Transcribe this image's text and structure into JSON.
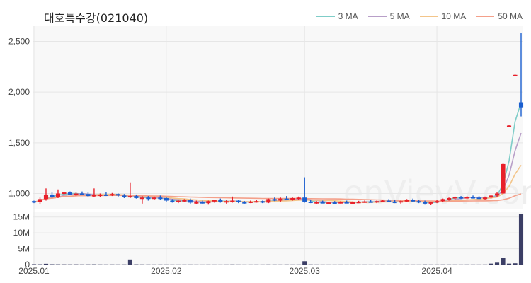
{
  "title": "대호특수강(021040)",
  "watermark": "enVievV.com",
  "legend": [
    {
      "label": "3 MA",
      "color": "#7fcdc8"
    },
    {
      "label": "5 MA",
      "color": "#b89fc8"
    },
    {
      "label": "10 MA",
      "color": "#f3c58a"
    },
    {
      "label": "50 MA",
      "color": "#f4a08a"
    }
  ],
  "colors": {
    "up": "#e8202a",
    "down": "#1b5fcf",
    "volume": "#3c3f66",
    "grid": "#e6e6e6",
    "panel": "#f8f8f8"
  },
  "chart_data": [
    {
      "type": "candlestick",
      "x_ticks": [
        {
          "label": "2025.01",
          "index": 0
        },
        {
          "label": "2025.02",
          "index": 22
        },
        {
          "label": "2025.03",
          "index": 45
        },
        {
          "label": "2025.04",
          "index": 67
        }
      ],
      "y_ticks": [
        1000,
        1500,
        2000,
        2500
      ],
      "ylim": [
        850,
        2650
      ],
      "grid": true,
      "legend_position": "top-right",
      "candles": [
        [
          925,
          930,
          905,
          915
        ],
        [
          915,
          960,
          895,
          945
        ],
        [
          945,
          1050,
          930,
          990
        ],
        [
          990,
          1010,
          955,
          965
        ],
        [
          965,
          1040,
          955,
          1000
        ],
        [
          1000,
          1015,
          990,
          1010
        ],
        [
          1010,
          1020,
          985,
          990
        ],
        [
          990,
          1010,
          975,
          1000
        ],
        [
          1000,
          1020,
          990,
          995
        ],
        [
          995,
          1010,
          965,
          975
        ],
        [
          975,
          1050,
          965,
          985
        ],
        [
          985,
          1000,
          965,
          990
        ],
        [
          990,
          1010,
          975,
          985
        ],
        [
          985,
          1005,
          975,
          995
        ],
        [
          995,
          1000,
          970,
          980
        ],
        [
          980,
          995,
          955,
          965
        ],
        [
          965,
          1110,
          955,
          975
        ],
        [
          975,
          990,
          950,
          955
        ],
        [
          955,
          975,
          900,
          960
        ],
        [
          960,
          975,
          930,
          950
        ],
        [
          950,
          970,
          940,
          960
        ],
        [
          960,
          980,
          940,
          955
        ],
        [
          955,
          965,
          920,
          930
        ],
        [
          930,
          945,
          910,
          920
        ],
        [
          920,
          935,
          905,
          930
        ],
        [
          930,
          945,
          920,
          935
        ],
        [
          935,
          950,
          900,
          910
        ],
        [
          910,
          930,
          895,
          915
        ],
        [
          915,
          930,
          900,
          905
        ],
        [
          905,
          930,
          890,
          925
        ],
        [
          925,
          940,
          910,
          935
        ],
        [
          935,
          950,
          910,
          915
        ],
        [
          915,
          935,
          900,
          925
        ],
        [
          925,
          970,
          910,
          930
        ],
        [
          930,
          940,
          905,
          915
        ],
        [
          915,
          925,
          900,
          910
        ],
        [
          910,
          930,
          905,
          920
        ],
        [
          920,
          935,
          910,
          925
        ],
        [
          925,
          930,
          905,
          910
        ],
        [
          910,
          950,
          905,
          945
        ],
        [
          945,
          960,
          925,
          930
        ],
        [
          930,
          960,
          920,
          950
        ],
        [
          950,
          975,
          935,
          940
        ],
        [
          940,
          960,
          930,
          955
        ],
        [
          955,
          970,
          940,
          960
        ],
        [
          960,
          1160,
          910,
          920
        ],
        [
          920,
          940,
          905,
          910
        ],
        [
          910,
          925,
          895,
          915
        ],
        [
          915,
          930,
          905,
          908
        ],
        [
          908,
          920,
          898,
          912
        ],
        [
          912,
          925,
          905,
          910
        ],
        [
          910,
          925,
          900,
          915
        ],
        [
          915,
          930,
          905,
          910
        ],
        [
          910,
          922,
          902,
          913
        ],
        [
          913,
          928,
          905,
          918
        ],
        [
          918,
          932,
          908,
          922
        ],
        [
          922,
          935,
          912,
          915
        ],
        [
          915,
          930,
          905,
          925
        ],
        [
          925,
          940,
          915,
          930
        ],
        [
          930,
          945,
          915,
          920
        ],
        [
          920,
          935,
          905,
          915
        ],
        [
          915,
          930,
          900,
          925
        ],
        [
          925,
          945,
          915,
          935
        ],
        [
          935,
          950,
          920,
          925
        ],
        [
          925,
          940,
          905,
          915
        ],
        [
          915,
          930,
          890,
          900
        ],
        [
          900,
          920,
          885,
          915
        ],
        [
          915,
          935,
          905,
          925
        ],
        [
          925,
          950,
          915,
          945
        ],
        [
          945,
          960,
          930,
          955
        ],
        [
          955,
          970,
          940,
          965
        ],
        [
          965,
          975,
          945,
          960
        ],
        [
          960,
          975,
          945,
          965
        ],
        [
          965,
          980,
          950,
          960
        ],
        [
          960,
          975,
          945,
          955
        ],
        [
          955,
          970,
          940,
          960
        ],
        [
          960,
          990,
          950,
          980
        ],
        [
          980,
          1010,
          965,
          1000
        ],
        [
          1000,
          1300,
          995,
          1290
        ],
        [
          1670,
          1680,
          1660,
          1670
        ],
        [
          2170,
          2180,
          2160,
          2170
        ],
        [
          1900,
          2580,
          1760,
          1850
        ]
      ],
      "volume": {
        "ticks": [
          {
            "label": "0",
            "value": 0
          },
          {
            "label": "5M",
            "value": 5000000
          },
          {
            "label": "10M",
            "value": 10000000
          },
          {
            "label": "15M",
            "value": 15000000
          }
        ],
        "ylim": [
          0,
          16500000
        ],
        "values": [
          120000,
          100000,
          250000,
          110000,
          90000,
          80000,
          70000,
          80000,
          60000,
          70000,
          90000,
          60000,
          50000,
          60000,
          50000,
          60000,
          1600000,
          90000,
          60000,
          50000,
          40000,
          50000,
          45000,
          40000,
          35000,
          40000,
          45000,
          35000,
          30000,
          40000,
          35000,
          30000,
          40000,
          60000,
          40000,
          30000,
          35000,
          40000,
          35000,
          50000,
          45000,
          40000,
          50000,
          40000,
          45000,
          1050000,
          60000,
          40000,
          35000,
          30000,
          30000,
          35000,
          30000,
          35000,
          30000,
          35000,
          30000,
          35000,
          40000,
          30000,
          35000,
          30000,
          40000,
          35000,
          30000,
          60000,
          40000,
          35000,
          50000,
          45000,
          40000,
          35000,
          45000,
          40000,
          35000,
          40000,
          300000,
          600000,
          2200000,
          300000,
          400000,
          16000000
        ]
      }
    }
  ]
}
